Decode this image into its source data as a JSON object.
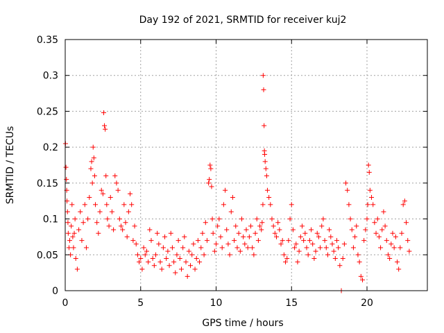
{
  "chart_data": {
    "type": "scatter",
    "title": "Day 192 of 2021, SRMTID for receiver kuj2",
    "xlabel": "GPS time / hours",
    "ylabel": "SRMTID / TECUs",
    "xlim": [
      0,
      24
    ],
    "ylim": [
      0,
      0.35
    ],
    "xticks": [
      0,
      5,
      10,
      15,
      20
    ],
    "xtick_labels": [
      "0",
      "5",
      "10",
      "15",
      "20"
    ],
    "yticks": [
      0,
      0.05,
      0.1,
      0.15,
      0.2,
      0.25,
      0.3,
      0.35
    ],
    "ytick_labels": [
      "0",
      "0.05",
      "0.1",
      "0.15",
      "0.2",
      "0.25",
      "0.3",
      "0.35"
    ],
    "grid": true,
    "marker": "+",
    "color": "#ff0000",
    "series": [
      {
        "name": "SRMTID",
        "x": [
          0.02,
          0.05,
          0.08,
          0.1,
          0.12,
          0.15,
          0.18,
          0.2,
          0.25,
          0.3,
          0.35,
          0.4,
          0.45,
          0.5,
          0.55,
          0.6,
          0.65,
          0.7,
          0.8,
          0.9,
          1.0,
          1.1,
          1.2,
          1.3,
          1.4,
          1.5,
          1.6,
          1.7,
          1.75,
          1.8,
          1.85,
          1.9,
          1.95,
          2.0,
          2.1,
          2.2,
          2.3,
          2.4,
          2.5,
          2.55,
          2.6,
          2.65,
          2.7,
          2.75,
          2.8,
          2.9,
          3.0,
          3.1,
          3.2,
          3.3,
          3.4,
          3.5,
          3.6,
          3.7,
          3.8,
          3.9,
          4.0,
          4.1,
          4.2,
          4.3,
          4.4,
          4.5,
          4.6,
          4.7,
          4.8,
          4.9,
          5.0,
          5.1,
          5.2,
          5.3,
          5.4,
          5.5,
          5.6,
          5.7,
          5.8,
          5.9,
          6.0,
          6.1,
          6.2,
          6.3,
          6.4,
          6.5,
          6.6,
          6.7,
          6.8,
          6.9,
          7.0,
          7.1,
          7.2,
          7.3,
          7.4,
          7.5,
          7.6,
          7.7,
          7.8,
          7.9,
          8.0,
          8.1,
          8.2,
          8.3,
          8.4,
          8.5,
          8.6,
          8.7,
          8.8,
          8.9,
          9.0,
          9.1,
          9.2,
          9.3,
          9.4,
          9.5,
          9.55,
          9.6,
          9.65,
          9.7,
          9.75,
          9.8,
          9.9,
          10.0,
          10.1,
          10.2,
          10.3,
          10.4,
          10.5,
          10.6,
          10.7,
          10.8,
          10.9,
          11.0,
          11.1,
          11.2,
          11.3,
          11.4,
          11.5,
          11.6,
          11.7,
          11.8,
          11.9,
          12.0,
          12.1,
          12.2,
          12.3,
          12.4,
          12.5,
          12.6,
          12.7,
          12.8,
          12.9,
          13.0,
          13.05,
          13.1,
          13.12,
          13.15,
          13.18,
          13.2,
          13.22,
          13.25,
          13.3,
          13.35,
          13.4,
          13.5,
          13.6,
          13.7,
          13.8,
          13.9,
          14.0,
          14.1,
          14.2,
          14.3,
          14.4,
          14.5,
          14.6,
          14.7,
          14.8,
          14.9,
          15.0,
          15.1,
          15.2,
          15.3,
          15.4,
          15.5,
          15.6,
          15.7,
          15.8,
          15.9,
          16.0,
          16.1,
          16.2,
          16.3,
          16.4,
          16.5,
          16.6,
          16.7,
          16.8,
          16.9,
          17.0,
          17.1,
          17.2,
          17.3,
          17.4,
          17.5,
          17.6,
          17.7,
          17.8,
          17.9,
          18.0,
          18.1,
          18.2,
          18.3,
          18.4,
          18.5,
          18.6,
          18.7,
          18.8,
          18.9,
          19.0,
          19.1,
          19.2,
          19.3,
          19.4,
          19.5,
          19.6,
          19.7,
          19.8,
          19.9,
          20.0,
          20.05,
          20.1,
          20.15,
          20.2,
          20.3,
          20.4,
          20.5,
          20.6,
          20.7,
          20.8,
          20.9,
          21.0,
          21.1,
          21.2,
          21.3,
          21.4,
          21.5,
          21.6,
          21.7,
          21.8,
          21.9,
          22.0,
          22.1,
          22.2,
          22.3,
          22.4,
          22.5,
          22.6,
          22.7,
          22.8
        ],
        "y": [
          0.205,
          0.172,
          0.155,
          0.14,
          0.125,
          0.11,
          0.095,
          0.08,
          0.06,
          0.07,
          0.05,
          0.09,
          0.12,
          0.075,
          0.06,
          0.08,
          0.1,
          0.045,
          0.03,
          0.085,
          0.11,
          0.07,
          0.095,
          0.12,
          0.06,
          0.1,
          0.13,
          0.17,
          0.18,
          0.15,
          0.2,
          0.185,
          0.16,
          0.12,
          0.095,
          0.08,
          0.11,
          0.14,
          0.135,
          0.248,
          0.23,
          0.225,
          0.16,
          0.12,
          0.1,
          0.09,
          0.13,
          0.11,
          0.085,
          0.16,
          0.15,
          0.14,
          0.1,
          0.09,
          0.085,
          0.12,
          0.095,
          0.075,
          0.11,
          0.135,
          0.12,
          0.07,
          0.09,
          0.065,
          0.05,
          0.04,
          0.045,
          0.03,
          0.06,
          0.05,
          0.055,
          0.04,
          0.085,
          0.07,
          0.045,
          0.035,
          0.05,
          0.08,
          0.065,
          0.04,
          0.03,
          0.06,
          0.075,
          0.045,
          0.055,
          0.035,
          0.08,
          0.06,
          0.04,
          0.025,
          0.05,
          0.07,
          0.045,
          0.03,
          0.06,
          0.075,
          0.04,
          0.02,
          0.055,
          0.035,
          0.05,
          0.065,
          0.03,
          0.045,
          0.07,
          0.04,
          0.06,
          0.08,
          0.05,
          0.095,
          0.07,
          0.15,
          0.155,
          0.175,
          0.17,
          0.145,
          0.1,
          0.08,
          0.055,
          0.065,
          0.09,
          0.1,
          0.075,
          0.06,
          0.12,
          0.14,
          0.085,
          0.065,
          0.05,
          0.11,
          0.13,
          0.07,
          0.09,
          0.06,
          0.08,
          0.055,
          0.1,
          0.075,
          0.065,
          0.085,
          0.06,
          0.075,
          0.09,
          0.06,
          0.05,
          0.08,
          0.1,
          0.07,
          0.09,
          0.085,
          0.095,
          0.12,
          0.3,
          0.28,
          0.23,
          0.195,
          0.19,
          0.18,
          0.17,
          0.16,
          0.14,
          0.13,
          0.12,
          0.1,
          0.09,
          0.08,
          0.075,
          0.095,
          0.085,
          0.065,
          0.07,
          0.05,
          0.04,
          0.045,
          0.07,
          0.1,
          0.12,
          0.085,
          0.06,
          0.065,
          0.04,
          0.055,
          0.075,
          0.09,
          0.07,
          0.08,
          0.06,
          0.05,
          0.07,
          0.085,
          0.065,
          0.045,
          0.055,
          0.08,
          0.075,
          0.06,
          0.09,
          0.1,
          0.07,
          0.06,
          0.05,
          0.085,
          0.075,
          0.065,
          0.055,
          0.045,
          0.07,
          0.06,
          0.035,
          0.0,
          0.045,
          0.065,
          0.15,
          0.14,
          0.12,
          0.1,
          0.085,
          0.06,
          0.075,
          0.09,
          0.05,
          0.04,
          0.02,
          0.015,
          0.07,
          0.085,
          0.1,
          0.12,
          0.175,
          0.165,
          0.14,
          0.13,
          0.12,
          0.095,
          0.08,
          0.1,
          0.075,
          0.06,
          0.085,
          0.11,
          0.09,
          0.07,
          0.05,
          0.045,
          0.065,
          0.08,
          0.06,
          0.075,
          0.04,
          0.03,
          0.06,
          0.08,
          0.12,
          0.125,
          0.095,
          0.07,
          0.055
        ]
      }
    ]
  }
}
